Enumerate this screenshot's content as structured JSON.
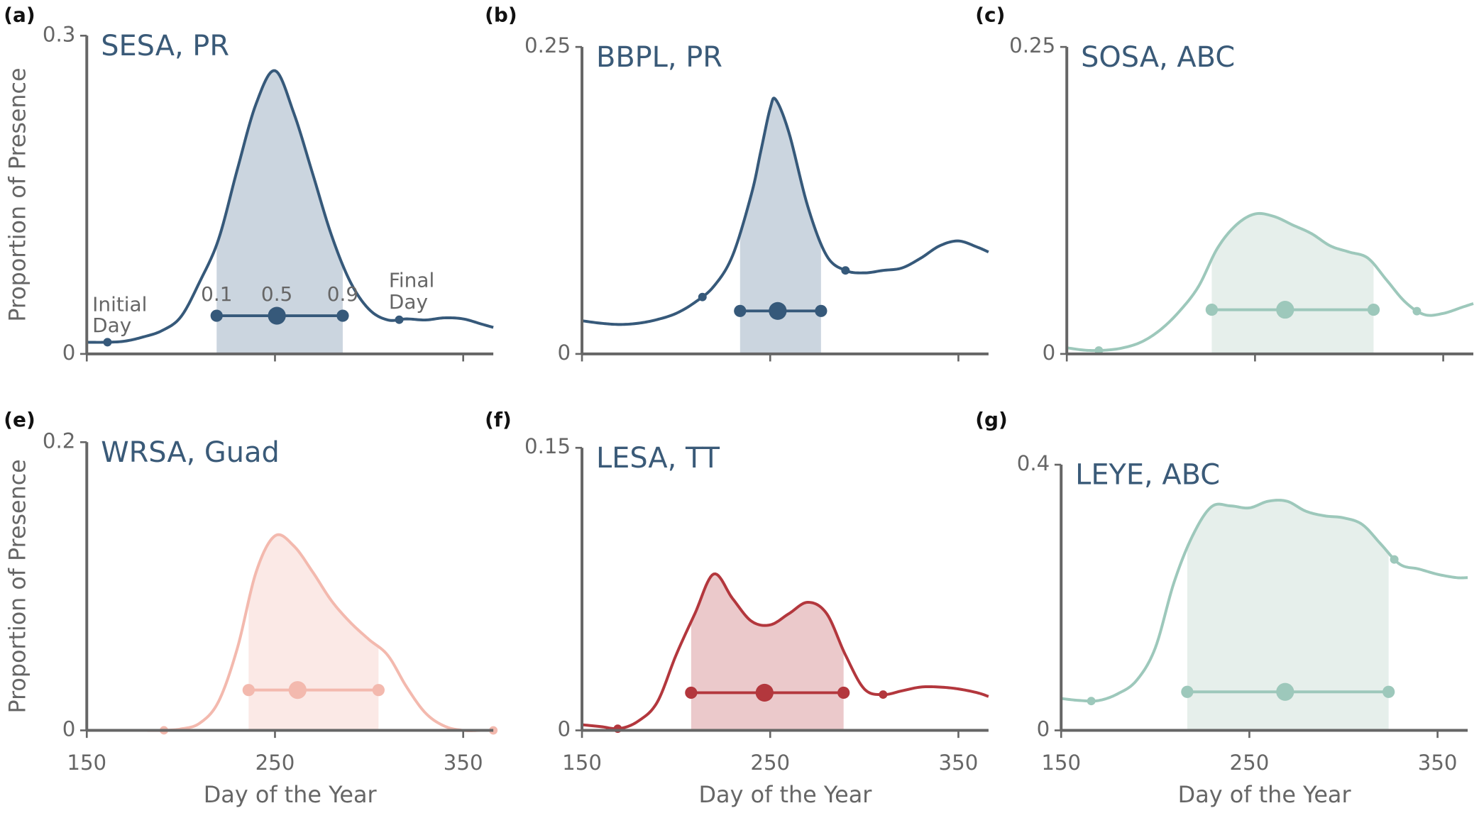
{
  "chart_data": [
    {
      "type": "line",
      "panel_label": "(a)",
      "title": "SESA, PR",
      "ylabel": "Proportion of Presence",
      "color": "#36597a",
      "fill_color": "#cbd5df",
      "xlim": [
        150,
        366
      ],
      "ylim": [
        0,
        0.3
      ],
      "yticks": [
        0,
        0.3
      ],
      "xticks": [
        150,
        250,
        350
      ],
      "show_xtick_labels": false,
      "x": [
        150,
        160,
        170,
        180,
        190,
        200,
        210,
        220,
        230,
        240,
        250,
        260,
        270,
        280,
        290,
        300,
        310,
        320,
        330,
        340,
        350,
        360,
        366
      ],
      "values": [
        0.011,
        0.011,
        0.012,
        0.016,
        0.022,
        0.035,
        0.068,
        0.108,
        0.174,
        0.236,
        0.267,
        0.227,
        0.17,
        0.112,
        0.068,
        0.042,
        0.032,
        0.033,
        0.032,
        0.034,
        0.033,
        0.028,
        0.025
      ],
      "markers": {
        "initial_day": 161,
        "q10": 219,
        "q50": 251,
        "q90": 286,
        "final_day": 316,
        "bar_y": 0.036
      },
      "quantile_labels": [
        "0.1",
        "0.5",
        "0.9"
      ],
      "initial_day_label": [
        "Initial",
        "Day"
      ],
      "final_day_label": [
        "Final",
        "Day"
      ]
    },
    {
      "type": "line",
      "panel_label": "(b)",
      "title": "BBPL, PR",
      "color": "#36597a",
      "fill_color": "#cbd5df",
      "xlim": [
        150,
        366
      ],
      "ylim": [
        0,
        0.25
      ],
      "yticks": [
        0,
        0.25
      ],
      "xticks": [
        150,
        250,
        350
      ],
      "show_xtick_labels": false,
      "x": [
        150,
        160,
        170,
        180,
        190,
        200,
        210,
        220,
        230,
        240,
        245,
        250,
        253,
        260,
        270,
        280,
        290,
        300,
        310,
        320,
        330,
        340,
        350,
        360,
        366
      ],
      "values": [
        0.027,
        0.025,
        0.024,
        0.025,
        0.028,
        0.033,
        0.042,
        0.055,
        0.08,
        0.13,
        0.165,
        0.2,
        0.207,
        0.18,
        0.12,
        0.08,
        0.068,
        0.066,
        0.068,
        0.07,
        0.078,
        0.088,
        0.092,
        0.087,
        0.083
      ],
      "markers": {
        "initial_day": 214,
        "q10": 234,
        "q50": 254,
        "q90": 277,
        "final_day": 290,
        "bar_y": 0.035
      }
    },
    {
      "type": "line",
      "panel_label": "(c)",
      "title": "SOSA, ABC",
      "color": "#9dc8bb",
      "fill_color": "#e6efeb",
      "xlim": [
        150,
        366
      ],
      "ylim": [
        0,
        0.25
      ],
      "yticks": [
        0,
        0.25
      ],
      "xticks": [
        150,
        250,
        350
      ],
      "show_xtick_labels": false,
      "x": [
        150,
        160,
        170,
        180,
        190,
        200,
        210,
        220,
        230,
        240,
        250,
        260,
        270,
        280,
        290,
        300,
        310,
        320,
        330,
        340,
        350,
        360,
        366
      ],
      "values": [
        0.005,
        0.003,
        0.003,
        0.005,
        0.01,
        0.02,
        0.035,
        0.055,
        0.086,
        0.105,
        0.114,
        0.112,
        0.105,
        0.098,
        0.088,
        0.083,
        0.078,
        0.06,
        0.042,
        0.032,
        0.033,
        0.038,
        0.041
      ],
      "markers": {
        "initial_day": 167,
        "q10": 227,
        "q50": 266,
        "q90": 313,
        "final_day": 336,
        "bar_y": 0.036
      }
    },
    {
      "type": "line",
      "panel_label": "(e)",
      "title": "WRSA, Guad",
      "ylabel": "Proportion of Presence",
      "xlabel": "Day of the Year",
      "color": "#f3b9ae",
      "fill_color": "#fbe9e6",
      "xlim": [
        150,
        366
      ],
      "ylim": [
        0,
        0.2
      ],
      "yticks": [
        0,
        0.2
      ],
      "xticks": [
        150,
        250,
        350
      ],
      "show_xtick_labels": true,
      "x": [
        150,
        160,
        170,
        180,
        190,
        200,
        210,
        220,
        230,
        240,
        250,
        260,
        270,
        280,
        290,
        300,
        310,
        320,
        330,
        340,
        350,
        360,
        366
      ],
      "values": [
        0,
        0,
        0,
        0,
        0,
        0.001,
        0.005,
        0.02,
        0.057,
        0.11,
        0.135,
        0.128,
        0.11,
        0.09,
        0.075,
        0.063,
        0.052,
        0.03,
        0.012,
        0.003,
        0,
        0,
        0
      ],
      "markers": {
        "initial_day": 191,
        "q10": 236,
        "q50": 262,
        "q90": 305,
        "final_day": 366,
        "bar_y": 0.028
      }
    },
    {
      "type": "line",
      "panel_label": "(f)",
      "title": "LESA, TT",
      "xlabel": "Day of the Year",
      "color": "#b3373d",
      "fill_color": "#ebc9cb",
      "xlim": [
        150,
        366
      ],
      "ylim": [
        0,
        0.15
      ],
      "yticks": [
        0,
        0.15
      ],
      "xticks": [
        150,
        250,
        350
      ],
      "show_xtick_labels": true,
      "x": [
        150,
        160,
        170,
        180,
        190,
        200,
        210,
        220,
        230,
        240,
        250,
        260,
        270,
        280,
        290,
        300,
        310,
        320,
        330,
        340,
        350,
        360,
        366
      ],
      "values": [
        0.003,
        0.002,
        0.001,
        0.005,
        0.015,
        0.04,
        0.062,
        0.083,
        0.07,
        0.058,
        0.056,
        0.062,
        0.068,
        0.062,
        0.04,
        0.022,
        0.019,
        0.021,
        0.023,
        0.023,
        0.022,
        0.02,
        0.018
      ],
      "markers": {
        "initial_day": 169,
        "q10": 208,
        "q50": 247,
        "q90": 289,
        "final_day": 310,
        "bar_y": 0.02
      }
    },
    {
      "type": "line",
      "panel_label": "(g)",
      "title": "LEYE, ABC",
      "xlabel": "Day of the Year",
      "color": "#9dc8bb",
      "fill_color": "#e6efeb",
      "xlim": [
        150,
        366
      ],
      "ylim": [
        0,
        0.4
      ],
      "yticks": [
        0,
        0.4
      ],
      "xticks": [
        150,
        250,
        350
      ],
      "show_xtick_labels": true,
      "x": [
        150,
        160,
        170,
        180,
        190,
        200,
        210,
        220,
        230,
        240,
        250,
        260,
        270,
        280,
        290,
        300,
        310,
        320,
        330,
        340,
        350,
        360,
        366
      ],
      "values": [
        0.048,
        0.045,
        0.045,
        0.055,
        0.075,
        0.124,
        0.223,
        0.294,
        0.337,
        0.338,
        0.335,
        0.345,
        0.345,
        0.33,
        0.323,
        0.32,
        0.31,
        0.28,
        0.25,
        0.243,
        0.235,
        0.23,
        0.23
      ],
      "markers": {
        "initial_day": 166,
        "q10": 217,
        "q50": 269,
        "q90": 324,
        "final_day": 327,
        "bar_y": 0.058
      }
    }
  ]
}
